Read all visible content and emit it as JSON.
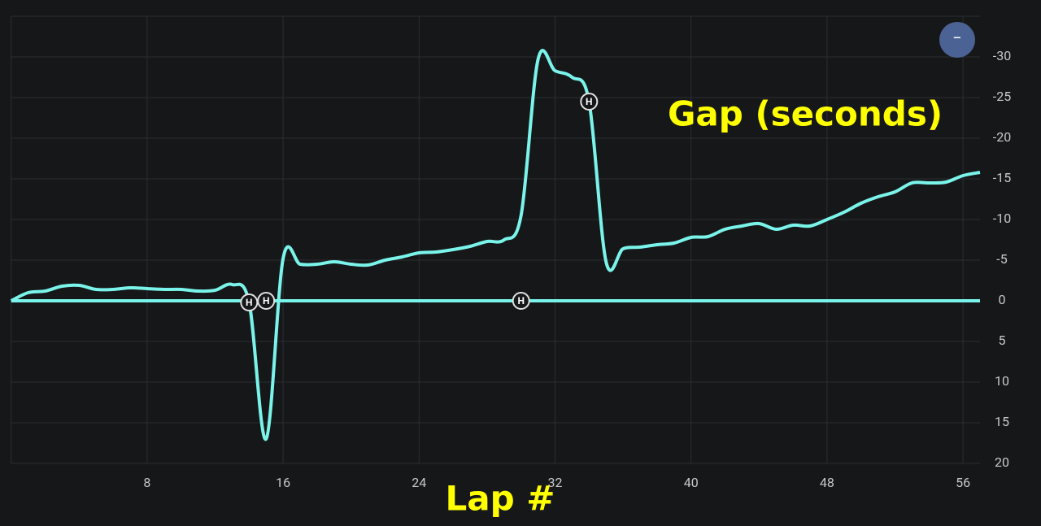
{
  "chart_data": {
    "type": "line",
    "annotations": {
      "y_title": "Gap (seconds)",
      "x_title": "Lap #"
    },
    "zoom_button": "−",
    "x": [
      0,
      1,
      2,
      3,
      4,
      5,
      6,
      7,
      8,
      9,
      10,
      11,
      12,
      13,
      14,
      15,
      16,
      17,
      18,
      19,
      20,
      21,
      22,
      23,
      24,
      25,
      26,
      27,
      28,
      29,
      30,
      31,
      32,
      33,
      34,
      35,
      36,
      37,
      38,
      39,
      40,
      41,
      42,
      43,
      44,
      45,
      46,
      47,
      48,
      49,
      50,
      51,
      52,
      53,
      54,
      55,
      56,
      57
    ],
    "series": [
      {
        "color": "#7af4ea",
        "values": [
          0,
          -1,
          -1.2,
          -1.8,
          -1.9,
          -1.4,
          -1.4,
          -1.6,
          -1.5,
          -1.4,
          -1.4,
          -1.2,
          -1.3,
          -2,
          0.2,
          17,
          -5.2,
          -4.5,
          -4.5,
          -4.8,
          -4.5,
          -4.4,
          -5,
          -5.4,
          -5.9,
          -6,
          -6.3,
          -6.7,
          -7.3,
          -7.5,
          -10.5,
          -29.7,
          -28.3,
          -27.5,
          -24.5,
          -4.8,
          -6.4,
          -6.6,
          -6.9,
          -7.1,
          -7.8,
          -7.9,
          -8.8,
          -9.2,
          -9.5,
          -8.8,
          -9.3,
          -9.2,
          -10,
          -10.9,
          -12,
          -12.8,
          -13.4,
          -14.5,
          -14.5,
          -14.6,
          -15.4,
          -15.8
        ]
      },
      {
        "color": "#7af4ea",
        "values": [
          0,
          0,
          0,
          0,
          0,
          0,
          0,
          0,
          0,
          0,
          0,
          0,
          0,
          0,
          0,
          0,
          0,
          0,
          0,
          0,
          0,
          0,
          0,
          0,
          0,
          0,
          0,
          0,
          0,
          0,
          0,
          0,
          0,
          0,
          0,
          0,
          0,
          0,
          0,
          0,
          0,
          0,
          0,
          0,
          0,
          0,
          0,
          0,
          0,
          0,
          0,
          0,
          0,
          0,
          0,
          0,
          0,
          0
        ]
      }
    ],
    "pit_stops": [
      {
        "x": 14,
        "y": 0.2,
        "label": "H"
      },
      {
        "x": 15,
        "y": 0,
        "label": "H"
      },
      {
        "x": 30,
        "y": 0,
        "label": "H"
      },
      {
        "x": 34,
        "y": -24.5,
        "label": "H"
      }
    ],
    "xlim": [
      0,
      57
    ],
    "xticks": [
      8,
      16,
      24,
      32,
      40,
      48,
      56
    ],
    "ylim": [
      -35,
      20
    ],
    "y_inverted": true,
    "yticks": [
      -30,
      -25,
      -20,
      -15,
      -10,
      -5,
      0,
      5,
      10,
      15,
      20
    ],
    "grid": true
  }
}
